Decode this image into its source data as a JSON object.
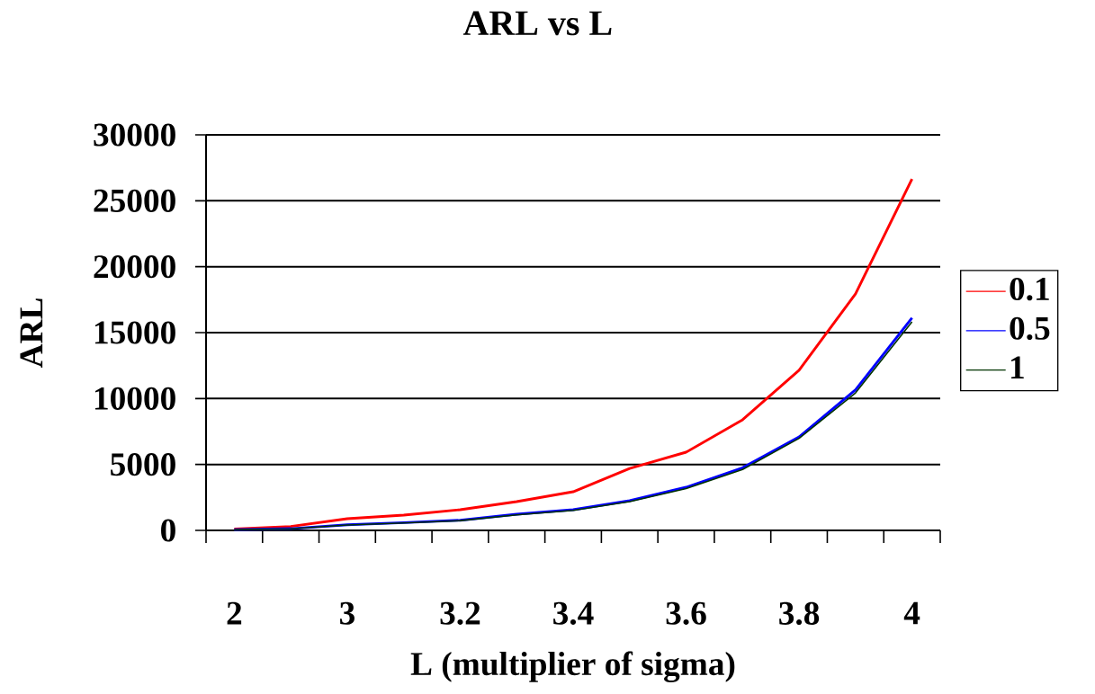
{
  "chart_data": {
    "type": "line",
    "title": "ARL vs L",
    "xlabel": "L (multiplier of sigma)",
    "ylabel": "ARL",
    "categories": [
      "2",
      null,
      "3",
      null,
      "3.2",
      null,
      "3.4",
      null,
      "3.6",
      null,
      "3.8",
      null,
      "4"
    ],
    "series": [
      {
        "name": "0.1",
        "color": "#ff0000",
        "values": [
          100,
          300,
          890,
          1160,
          1570,
          2180,
          2930,
          4700,
          5930,
          8390,
          12140,
          17940,
          26650
        ]
      },
      {
        "name": "0.5",
        "color": "#0000ff",
        "values": [
          50,
          130,
          430,
          590,
          770,
          1230,
          1570,
          2250,
          3270,
          4750,
          7090,
          10660,
          16120
        ]
      },
      {
        "name": "1",
        "color": "#003300",
        "values": [
          40,
          120,
          410,
          560,
          740,
          1180,
          1520,
          2180,
          3170,
          4620,
          6980,
          10430,
          15820
        ]
      }
    ],
    "ylim": [
      0,
      30000
    ],
    "yticks": [
      0,
      5000,
      10000,
      15000,
      20000,
      25000,
      30000
    ],
    "grid": "y",
    "legend": "right",
    "marker": "none",
    "line_style": "solid"
  }
}
